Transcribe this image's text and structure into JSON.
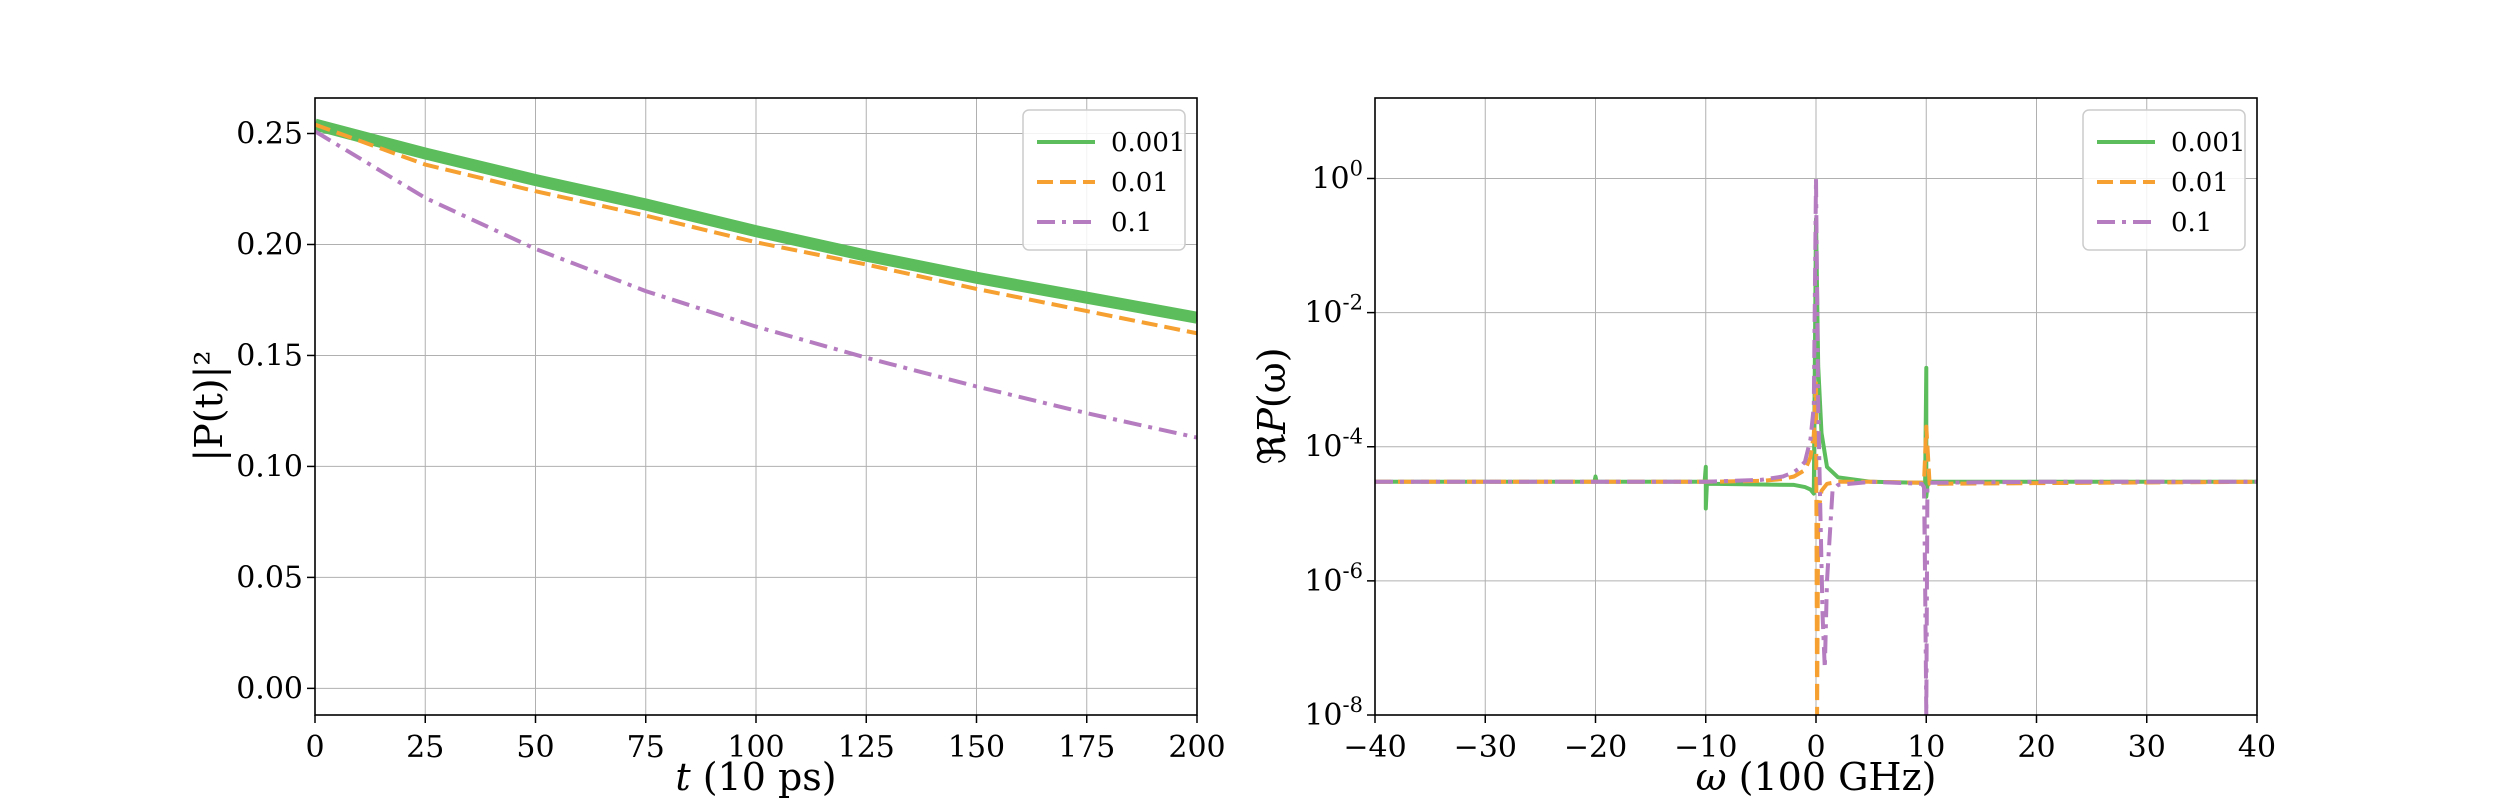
{
  "chart_data": [
    {
      "type": "line",
      "xlabel_var": "t",
      "xlabel_unit": " (10 ps)",
      "ylabel": "|P(t)|²",
      "xlim": [
        0,
        200
      ],
      "ylim": [
        -0.012,
        0.266
      ],
      "xticks": [
        0,
        25,
        50,
        75,
        100,
        125,
        150,
        175,
        200
      ],
      "xtick_labels": [
        "0",
        "25",
        "50",
        "75",
        "100",
        "125",
        "150",
        "175",
        "200"
      ],
      "yticks": [
        0.0,
        0.05,
        0.1,
        0.15,
        0.2,
        0.25
      ],
      "ytick_labels": [
        "0.00",
        "0.05",
        "0.10",
        "0.15",
        "0.20",
        "0.25"
      ],
      "grid": true,
      "legend": "top-right",
      "series": [
        {
          "name": "0.001",
          "color": "#5cbd5c",
          "style": "solid",
          "x": [
            0,
            25,
            50,
            75,
            100,
            125,
            150,
            175,
            200
          ],
          "y": [
            0.254,
            0.241,
            0.229,
            0.218,
            0.206,
            0.195,
            0.185,
            0.176,
            0.167
          ]
        },
        {
          "name": "0.01",
          "color": "#f5a030",
          "style": "dashed",
          "x": [
            0,
            25,
            50,
            75,
            100,
            125,
            150,
            175,
            200
          ],
          "y": [
            0.254,
            0.236,
            0.224,
            0.213,
            0.201,
            0.191,
            0.18,
            0.17,
            0.16
          ]
        },
        {
          "name": "0.1",
          "color": "#b57cc0",
          "style": "dashdot",
          "x": [
            0,
            25,
            50,
            75,
            100,
            125,
            150,
            175,
            200
          ],
          "y": [
            0.251,
            0.221,
            0.198,
            0.179,
            0.163,
            0.149,
            0.136,
            0.124,
            0.113
          ]
        }
      ]
    },
    {
      "type": "line",
      "xlabel_var": "ω",
      "xlabel_unit": " (100 GHz)",
      "ylabel_prefix": "ℜ",
      "ylabel_var": "P",
      "ylabel_arg": "(ω)",
      "xlim": [
        -40,
        40
      ],
      "yscale": "log",
      "ylim_exp": [
        -8,
        1.2
      ],
      "xticks": [
        -40,
        -30,
        -20,
        -10,
        0,
        10,
        20,
        30,
        40
      ],
      "xtick_labels": [
        "−40",
        "−30",
        "−20",
        "−10",
        "0",
        "10",
        "20",
        "30",
        "40"
      ],
      "yticks_exp": [
        -8,
        -6,
        -4,
        -2,
        0
      ],
      "ytick_labels": [
        {
          "base": "10",
          "exp": "-8"
        },
        {
          "base": "10",
          "exp": "-6"
        },
        {
          "base": "10",
          "exp": "-4"
        },
        {
          "base": "10",
          "exp": "-2"
        },
        {
          "base": "10",
          "exp": "0"
        }
      ],
      "grid": true,
      "legend": "top-right",
      "series": [
        {
          "name": "0.001",
          "color": "#5cbd5c",
          "style": "solid",
          "x": [
            -40,
            -20.1,
            -20,
            -19.9,
            -10.1,
            -10,
            -10,
            -9.9,
            -2,
            -1,
            -0.5,
            -0.2,
            0,
            0.2,
            0.5,
            1,
            2,
            5,
            9.8,
            9.9,
            10,
            10,
            10.1,
            10.3,
            20,
            40
          ],
          "y": [
            3e-05,
            3e-05,
            3.6e-05,
            3e-05,
            3e-05,
            5e-05,
            1.2e-05,
            2.8e-05,
            2.7e-05,
            2.5e-05,
            2.3e-05,
            2e-05,
            0.25,
            0.0016,
            0.00016,
            5e-05,
            3.5e-05,
            3e-05,
            2.9e-05,
            2.7e-05,
            0.0015,
            1.8e-05,
            2.6e-05,
            3e-05,
            3e-05,
            3e-05
          ]
        },
        {
          "name": "0.01",
          "color": "#f5a030",
          "style": "dashed",
          "x": [
            -40,
            -10,
            -5,
            -3,
            -2,
            -1,
            -0.5,
            -0.2,
            0,
            0.1,
            0.2,
            0.5,
            1,
            2,
            5,
            9.8,
            10,
            10.3,
            40
          ],
          "y": [
            3e-05,
            3e-05,
            3.1e-05,
            3.3e-05,
            3.6e-05,
            4.5e-05,
            7e-05,
            0.00015,
            0.001,
            1e-08,
            1e-05,
            2.2e-05,
            2.8e-05,
            3e-05,
            3e-05,
            2.9e-05,
            0.0002,
            2.8e-05,
            3e-05
          ]
        },
        {
          "name": "0.1",
          "color": "#b57cc0",
          "style": "dashdot",
          "x": [
            -40,
            -10,
            -5,
            -3,
            -2,
            -1.5,
            -1,
            -0.5,
            -0.2,
            0,
            0.2,
            0.4,
            0.6,
            0.8,
            1,
            1.5,
            2,
            5,
            9.6,
            9.8,
            9.9,
            10,
            10.1,
            10.3,
            20,
            40
          ],
          "y": [
            3e-05,
            3e-05,
            3.2e-05,
            3.6e-05,
            4.2e-05,
            4.8e-05,
            6e-05,
            0.00013,
            0.0004,
            1.0,
            0.0004,
            1e-05,
            3e-07,
            5e-08,
            1e-06,
            2.2e-05,
            2.7e-05,
            3e-05,
            2.8e-05,
            2.5e-05,
            1e-06,
            1e-08,
            2.4e-05,
            2.9e-05,
            3e-05,
            3e-05
          ]
        }
      ]
    }
  ]
}
